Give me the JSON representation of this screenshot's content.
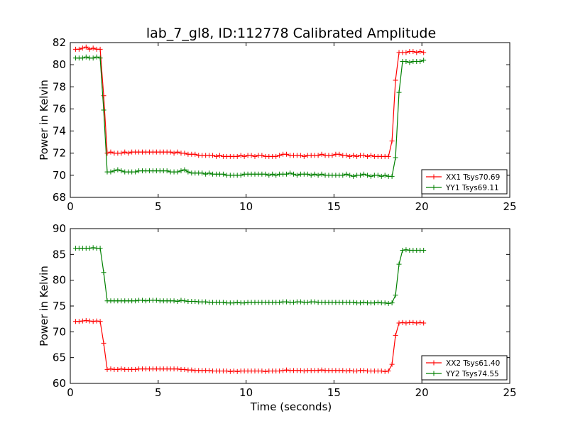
{
  "title": "lab_7_gl8, ID:112778 Calibrated Amplitude",
  "xlabel": "Time (seconds)",
  "colors": {
    "red": "#ff0000",
    "green": "#008000"
  },
  "chart_data": [
    {
      "type": "line",
      "title": "lab_7_gl8, ID:112778 Calibrated Amplitude",
      "xlabel": "",
      "ylabel": "Power in Kelvin",
      "xlim": [
        0,
        25
      ],
      "ylim": [
        68,
        82
      ],
      "xticks": [
        0,
        5,
        10,
        15,
        20,
        25
      ],
      "yticks": [
        68,
        70,
        72,
        74,
        76,
        78,
        80,
        82
      ],
      "grid": false,
      "legend": "lower-right",
      "series": [
        {
          "name": "XX1 Tsys70.69",
          "color": "#ff0000",
          "x": [
            0.3,
            0.5,
            0.7,
            0.9,
            1.1,
            1.3,
            1.5,
            1.7,
            1.9,
            2.1,
            2.3,
            2.5,
            2.7,
            2.9,
            3.1,
            3.3,
            3.5,
            3.7,
            3.9,
            4.1,
            4.3,
            4.5,
            4.7,
            4.9,
            5.1,
            5.3,
            5.5,
            5.7,
            5.9,
            6.1,
            6.3,
            6.5,
            6.7,
            6.9,
            7.1,
            7.3,
            7.5,
            7.7,
            7.9,
            8.1,
            8.3,
            8.5,
            8.7,
            8.9,
            9.1,
            9.3,
            9.5,
            9.7,
            9.9,
            10.1,
            10.3,
            10.5,
            10.7,
            10.9,
            11.1,
            11.3,
            11.5,
            11.7,
            11.9,
            12.1,
            12.3,
            12.5,
            12.7,
            12.9,
            13.1,
            13.3,
            13.5,
            13.7,
            13.9,
            14.1,
            14.3,
            14.5,
            14.7,
            14.9,
            15.1,
            15.3,
            15.5,
            15.7,
            15.9,
            16.1,
            16.3,
            16.5,
            16.7,
            16.9,
            17.1,
            17.3,
            17.5,
            17.7,
            17.9,
            18.1,
            18.3,
            18.5,
            18.7,
            18.9,
            19.1,
            19.3,
            19.5,
            19.7,
            19.9,
            20.1
          ],
          "y": [
            81.4,
            81.4,
            81.5,
            81.6,
            81.4,
            81.5,
            81.4,
            81.4,
            77.2,
            72.0,
            72.1,
            72.0,
            72.0,
            72.0,
            72.1,
            72.0,
            72.1,
            72.1,
            72.1,
            72.1,
            72.1,
            72.1,
            72.1,
            72.1,
            72.1,
            72.1,
            72.1,
            72.1,
            72.0,
            72.1,
            72.0,
            72.0,
            71.9,
            71.9,
            71.9,
            71.8,
            71.8,
            71.8,
            71.8,
            71.8,
            71.7,
            71.8,
            71.7,
            71.7,
            71.7,
            71.7,
            71.7,
            71.8,
            71.7,
            71.8,
            71.8,
            71.7,
            71.8,
            71.8,
            71.7,
            71.7,
            71.7,
            71.7,
            71.8,
            71.9,
            71.9,
            71.8,
            71.8,
            71.8,
            71.8,
            71.7,
            71.8,
            71.8,
            71.8,
            71.8,
            71.9,
            71.8,
            71.8,
            71.8,
            71.9,
            71.9,
            71.8,
            71.8,
            71.7,
            71.8,
            71.7,
            71.8,
            71.8,
            71.7,
            71.8,
            71.7,
            71.7,
            71.7,
            71.7,
            71.7,
            73.1,
            78.6,
            81.1,
            81.1,
            81.1,
            81.2,
            81.2,
            81.1,
            81.2,
            81.1
          ]
        },
        {
          "name": "YY1 Tsys69.11",
          "color": "#008000",
          "x": [
            0.3,
            0.5,
            0.7,
            0.9,
            1.1,
            1.3,
            1.5,
            1.7,
            1.9,
            2.1,
            2.3,
            2.5,
            2.7,
            2.9,
            3.1,
            3.3,
            3.5,
            3.7,
            3.9,
            4.1,
            4.3,
            4.5,
            4.7,
            4.9,
            5.1,
            5.3,
            5.5,
            5.7,
            5.9,
            6.1,
            6.3,
            6.5,
            6.7,
            6.9,
            7.1,
            7.3,
            7.5,
            7.7,
            7.9,
            8.1,
            8.3,
            8.5,
            8.7,
            8.9,
            9.1,
            9.3,
            9.5,
            9.7,
            9.9,
            10.1,
            10.3,
            10.5,
            10.7,
            10.9,
            11.1,
            11.3,
            11.5,
            11.7,
            11.9,
            12.1,
            12.3,
            12.5,
            12.7,
            12.9,
            13.1,
            13.3,
            13.5,
            13.7,
            13.9,
            14.1,
            14.3,
            14.5,
            14.7,
            14.9,
            15.1,
            15.3,
            15.5,
            15.7,
            15.9,
            16.1,
            16.3,
            16.5,
            16.7,
            16.9,
            17.1,
            17.3,
            17.5,
            17.7,
            17.9,
            18.1,
            18.3,
            18.5,
            18.7,
            18.9,
            19.1,
            19.3,
            19.5,
            19.7,
            19.9,
            20.1
          ],
          "y": [
            80.6,
            80.6,
            80.6,
            80.7,
            80.6,
            80.6,
            80.7,
            80.6,
            75.9,
            70.3,
            70.3,
            70.4,
            70.5,
            70.4,
            70.3,
            70.3,
            70.3,
            70.3,
            70.4,
            70.4,
            70.4,
            70.4,
            70.4,
            70.4,
            70.4,
            70.4,
            70.4,
            70.3,
            70.3,
            70.3,
            70.4,
            70.5,
            70.3,
            70.2,
            70.2,
            70.2,
            70.2,
            70.1,
            70.2,
            70.1,
            70.1,
            70.1,
            70.1,
            70.0,
            70.0,
            70.0,
            70.0,
            70.0,
            70.1,
            70.1,
            70.1,
            70.1,
            70.1,
            70.1,
            70.1,
            70.0,
            70.1,
            70.0,
            70.1,
            70.1,
            70.1,
            70.2,
            70.1,
            70.0,
            70.1,
            70.1,
            70.1,
            70.0,
            70.1,
            70.0,
            70.1,
            70.0,
            70.0,
            70.0,
            70.0,
            70.0,
            70.0,
            70.1,
            70.0,
            69.9,
            70.0,
            70.0,
            70.1,
            70.0,
            69.9,
            70.0,
            70.0,
            69.9,
            70.0,
            69.9,
            69.9,
            71.6,
            77.5,
            80.3,
            80.3,
            80.2,
            80.3,
            80.3,
            80.3,
            80.4
          ]
        }
      ]
    },
    {
      "type": "line",
      "title": "",
      "xlabel": "Time (seconds)",
      "ylabel": "Power in Kelvin",
      "xlim": [
        0,
        25
      ],
      "ylim": [
        60,
        90
      ],
      "xticks": [
        0,
        5,
        10,
        15,
        20,
        25
      ],
      "yticks": [
        60,
        65,
        70,
        75,
        80,
        85,
        90
      ],
      "grid": false,
      "legend": "lower-right",
      "series": [
        {
          "name": "XX2 Tsys61.40",
          "color": "#ff0000",
          "x": [
            0.3,
            0.5,
            0.7,
            0.9,
            1.1,
            1.3,
            1.5,
            1.7,
            1.9,
            2.1,
            2.3,
            2.5,
            2.7,
            2.9,
            3.1,
            3.3,
            3.5,
            3.7,
            3.9,
            4.1,
            4.3,
            4.5,
            4.7,
            4.9,
            5.1,
            5.3,
            5.5,
            5.7,
            5.9,
            6.1,
            6.3,
            6.5,
            6.7,
            6.9,
            7.1,
            7.3,
            7.5,
            7.7,
            7.9,
            8.1,
            8.3,
            8.5,
            8.7,
            8.9,
            9.1,
            9.3,
            9.5,
            9.7,
            9.9,
            10.1,
            10.3,
            10.5,
            10.7,
            10.9,
            11.1,
            11.3,
            11.5,
            11.7,
            11.9,
            12.1,
            12.3,
            12.5,
            12.7,
            12.9,
            13.1,
            13.3,
            13.5,
            13.7,
            13.9,
            14.1,
            14.3,
            14.5,
            14.7,
            14.9,
            15.1,
            15.3,
            15.5,
            15.7,
            15.9,
            16.1,
            16.3,
            16.5,
            16.7,
            16.9,
            17.1,
            17.3,
            17.5,
            17.7,
            17.9,
            18.1,
            18.3,
            18.5,
            18.7,
            18.9,
            19.1,
            19.3,
            19.5,
            19.7,
            19.9,
            20.1
          ],
          "y": [
            72.0,
            72.0,
            72.1,
            72.2,
            72.1,
            72.0,
            72.1,
            72.0,
            67.8,
            62.7,
            62.8,
            62.7,
            62.7,
            62.8,
            62.7,
            62.7,
            62.7,
            62.7,
            62.8,
            62.8,
            62.8,
            62.8,
            62.8,
            62.8,
            62.8,
            62.8,
            62.8,
            62.8,
            62.8,
            62.8,
            62.7,
            62.7,
            62.6,
            62.6,
            62.5,
            62.5,
            62.5,
            62.5,
            62.5,
            62.4,
            62.4,
            62.4,
            62.4,
            62.4,
            62.3,
            62.4,
            62.3,
            62.4,
            62.4,
            62.4,
            62.4,
            62.4,
            62.4,
            62.4,
            62.3,
            62.4,
            62.4,
            62.4,
            62.4,
            62.5,
            62.6,
            62.5,
            62.5,
            62.5,
            62.5,
            62.4,
            62.5,
            62.5,
            62.5,
            62.5,
            62.6,
            62.5,
            62.5,
            62.5,
            62.5,
            62.5,
            62.5,
            62.4,
            62.5,
            62.4,
            62.4,
            62.5,
            62.5,
            62.4,
            62.4,
            62.4,
            62.4,
            62.4,
            62.3,
            62.4,
            63.7,
            69.3,
            71.7,
            71.8,
            71.7,
            71.8,
            71.8,
            71.7,
            71.8,
            71.7
          ]
        },
        {
          "name": "YY2 Tsys74.55",
          "color": "#008000",
          "x": [
            0.3,
            0.5,
            0.7,
            0.9,
            1.1,
            1.3,
            1.5,
            1.7,
            1.9,
            2.1,
            2.3,
            2.5,
            2.7,
            2.9,
            3.1,
            3.3,
            3.5,
            3.7,
            3.9,
            4.1,
            4.3,
            4.5,
            4.7,
            4.9,
            5.1,
            5.3,
            5.5,
            5.7,
            5.9,
            6.1,
            6.3,
            6.5,
            6.7,
            6.9,
            7.1,
            7.3,
            7.5,
            7.7,
            7.9,
            8.1,
            8.3,
            8.5,
            8.7,
            8.9,
            9.1,
            9.3,
            9.5,
            9.7,
            9.9,
            10.1,
            10.3,
            10.5,
            10.7,
            10.9,
            11.1,
            11.3,
            11.5,
            11.7,
            11.9,
            12.1,
            12.3,
            12.5,
            12.7,
            12.9,
            13.1,
            13.3,
            13.5,
            13.7,
            13.9,
            14.1,
            14.3,
            14.5,
            14.7,
            14.9,
            15.1,
            15.3,
            15.5,
            15.7,
            15.9,
            16.1,
            16.3,
            16.5,
            16.7,
            16.9,
            17.1,
            17.3,
            17.5,
            17.7,
            17.9,
            18.1,
            18.3,
            18.5,
            18.7,
            18.9,
            19.1,
            19.3,
            19.5,
            19.7,
            19.9,
            20.1
          ],
          "y": [
            86.2,
            86.2,
            86.2,
            86.2,
            86.2,
            86.3,
            86.2,
            86.2,
            81.5,
            76.0,
            76.0,
            76.0,
            76.0,
            76.0,
            76.0,
            76.0,
            76.0,
            76.0,
            76.1,
            76.1,
            76.0,
            76.1,
            76.1,
            76.1,
            76.0,
            76.0,
            76.0,
            76.0,
            76.0,
            75.9,
            76.1,
            76.0,
            75.9,
            75.9,
            75.9,
            75.8,
            75.8,
            75.8,
            75.7,
            75.7,
            75.7,
            75.7,
            75.7,
            75.6,
            75.6,
            75.6,
            75.7,
            75.6,
            75.6,
            75.7,
            75.7,
            75.7,
            75.7,
            75.7,
            75.7,
            75.7,
            75.7,
            75.7,
            75.7,
            75.8,
            75.8,
            75.7,
            75.7,
            75.8,
            75.8,
            75.7,
            75.7,
            75.8,
            75.8,
            75.7,
            75.7,
            75.7,
            75.7,
            75.7,
            75.7,
            75.7,
            75.7,
            75.7,
            75.7,
            75.7,
            75.6,
            75.6,
            75.7,
            75.6,
            75.6,
            75.6,
            75.7,
            75.6,
            75.6,
            75.5,
            75.6,
            77.1,
            83.1,
            85.8,
            85.9,
            85.8,
            85.8,
            85.8,
            85.8,
            85.8
          ]
        }
      ]
    }
  ]
}
